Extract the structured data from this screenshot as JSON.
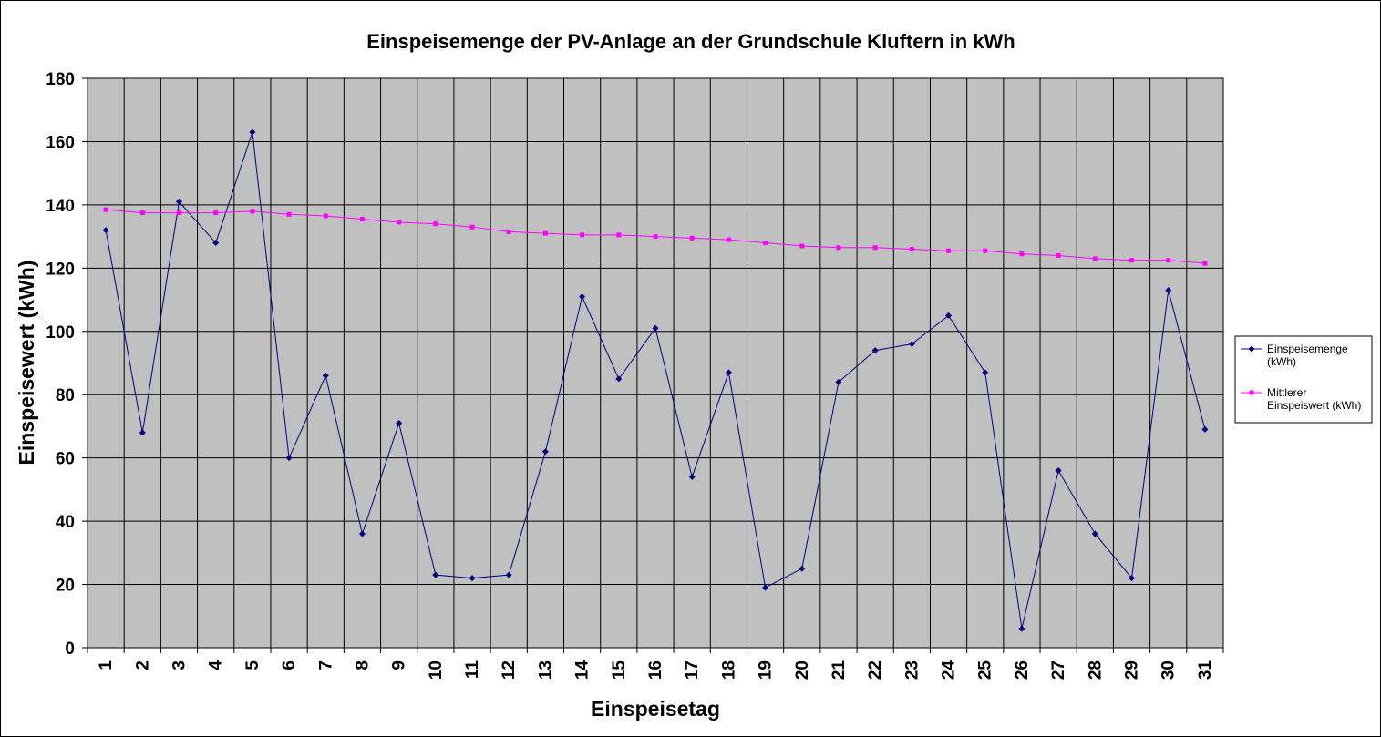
{
  "chart_data": {
    "type": "line",
    "title": "Einspeisemenge der PV-Anlage an der Grundschule Kluftern in kWh",
    "xlabel": "Einspeisetag",
    "ylabel": "Einspeisewert  (kWh)",
    "categories": [
      "1",
      "2",
      "3",
      "4",
      "5",
      "6",
      "7",
      "8",
      "9",
      "10",
      "11",
      "12",
      "13",
      "14",
      "15",
      "16",
      "17",
      "18",
      "19",
      "20",
      "21",
      "22",
      "23",
      "24",
      "25",
      "26",
      "27",
      "28",
      "29",
      "30",
      "31"
    ],
    "yticks": [
      "0",
      "20",
      "40",
      "60",
      "80",
      "100",
      "120",
      "140",
      "160",
      "180"
    ],
    "ylim": [
      0,
      180
    ],
    "grid": true,
    "plot_background": "#c0c0c0",
    "legend_position": "right",
    "series": [
      {
        "name": "Einspeisemenge (kWh)",
        "legend_lines": [
          "Einspeisemenge",
          "(kWh)"
        ],
        "color": "#000080",
        "marker": "diamond",
        "values": [
          132,
          68,
          141,
          128,
          163,
          60,
          86,
          36,
          71,
          23,
          22,
          23,
          62,
          111,
          85,
          101,
          54,
          87,
          19,
          25,
          84,
          94,
          96,
          105,
          87,
          6,
          56,
          36,
          22,
          113,
          69
        ]
      },
      {
        "name": "Mittlerer Einspeiswert (kWh)",
        "legend_lines": [
          "Mittlerer",
          "Einspeiswert (kWh)"
        ],
        "color": "#ff00ff",
        "marker": "square",
        "values": [
          138.5,
          137.5,
          137.5,
          137.5,
          138,
          137,
          136.5,
          135.5,
          134.5,
          134,
          133,
          131.5,
          131,
          130.5,
          130.5,
          130,
          129.5,
          129,
          128,
          127,
          126.5,
          126.5,
          126,
          125.5,
          125.5,
          124.5,
          124,
          123,
          122.5,
          122.5,
          121.5
        ]
      }
    ]
  }
}
